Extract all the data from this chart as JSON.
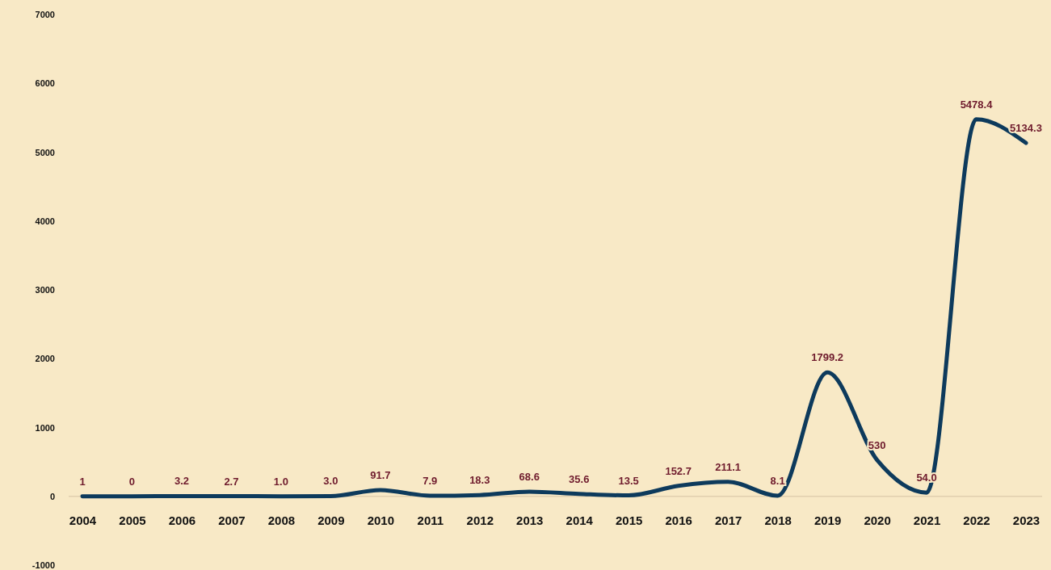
{
  "chart_data": {
    "type": "line",
    "categories": [
      "2004",
      "2005",
      "2006",
      "2007",
      "2008",
      "2009",
      "2010",
      "2011",
      "2012",
      "2013",
      "2014",
      "2015",
      "2016",
      "2017",
      "2018",
      "2019",
      "2020",
      "2021",
      "2022",
      "2023"
    ],
    "series": [
      {
        "color": "#0d3a5c",
        "values": [
          1,
          0,
          3.2,
          2.7,
          1.0,
          3.0,
          91.7,
          7.9,
          18.3,
          68.6,
          35.6,
          13.5,
          152.7,
          211.1,
          8.1,
          1799.2,
          530,
          54.0,
          5478.4,
          5134.3
        ],
        "value_labels": [
          "1",
          "0",
          "3.2",
          "2.7",
          "1.0",
          "3.0",
          "91.7",
          "7.9",
          "18.3",
          "68.6",
          "35.6",
          "13.5",
          "152.7",
          "211.1",
          "8.1",
          "1799.2",
          "530",
          "54.0",
          "5478.4",
          "5134.3"
        ]
      }
    ],
    "ylim": [
      -1000,
      7000
    ],
    "yticks": [
      -1000,
      0,
      1000,
      2000,
      3000,
      4000,
      5000,
      6000,
      7000
    ],
    "grid": false,
    "marker": "none",
    "line_style": "solid"
  }
}
